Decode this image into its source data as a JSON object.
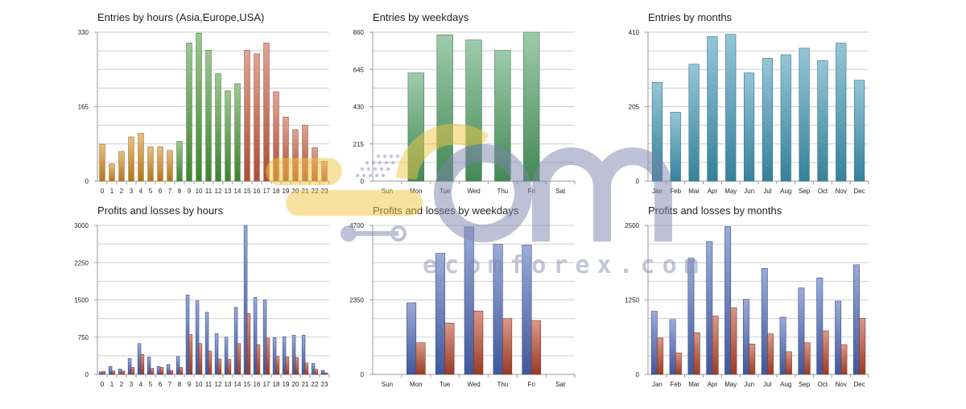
{
  "chart_data": [
    {
      "type": "bar",
      "title": "Entries by hours (Asia,Europe,USA)",
      "categories": [
        "0",
        "1",
        "2",
        "3",
        "4",
        "5",
        "6",
        "7",
        "8",
        "9",
        "10",
        "11",
        "12",
        "13",
        "14",
        "15",
        "16",
        "17",
        "18",
        "19",
        "20",
        "21",
        "22",
        "23"
      ],
      "series": [
        {
          "values": [
            82,
            38,
            66,
            98,
            106,
            76,
            76,
            68,
            88,
            306,
            328,
            290,
            238,
            200,
            216,
            290,
            282,
            306,
            198,
            142,
            114,
            124,
            74,
            44
          ]
        }
      ],
      "bar_colors": [
        "#d38a1e",
        "#d38a1e",
        "#d38a1e",
        "#d38a1e",
        "#d38a1e",
        "#d38a1e",
        "#d38a1e",
        "#d38a1e",
        "#4c9a3a",
        "#4c9a3a",
        "#4c9a3a",
        "#4c9a3a",
        "#4c9a3a",
        "#4c9a3a",
        "#4c9a3a",
        "#c95a3e",
        "#c95a3e",
        "#c95a3e",
        "#c95a3e",
        "#c95a3e",
        "#c95a3e",
        "#c95a3e",
        "#c95a3e",
        "#c95a3e"
      ],
      "ylim": [
        0,
        330
      ],
      "yticks": [
        "330",
        "165",
        "0"
      ],
      "grid": true
    },
    {
      "type": "bar",
      "title": "Entries by weekdays",
      "categories": [
        "Sun",
        "Mon",
        "Tue",
        "Wed",
        "Thu",
        "Fri",
        "Sat"
      ],
      "series": [
        {
          "values": [
            0,
            625,
            845,
            815,
            755,
            860,
            0
          ]
        }
      ],
      "bar_colors": [
        "#4fa165",
        "#4fa165",
        "#4fa165",
        "#4fa165",
        "#4fa165",
        "#4fa165",
        "#4fa165"
      ],
      "ylim": [
        0,
        860
      ],
      "yticks": [
        "860",
        "645",
        "430",
        "215",
        "0"
      ],
      "grid": true
    },
    {
      "type": "bar",
      "title": "Entries by months",
      "categories": [
        "Jan",
        "Feb",
        "Mar",
        "Apr",
        "May",
        "Jun",
        "Jul",
        "Aug",
        "Sep",
        "Oct",
        "Nov",
        "Dec"
      ],
      "series": [
        {
          "values": [
            272,
            190,
            322,
            398,
            404,
            298,
            338,
            348,
            366,
            332,
            380,
            278
          ]
        }
      ],
      "bar_colors": [
        "#3f98b6",
        "#3f98b6",
        "#3f98b6",
        "#3f98b6",
        "#3f98b6",
        "#3f98b6",
        "#3f98b6",
        "#3f98b6",
        "#3f98b6",
        "#3f98b6",
        "#3f98b6",
        "#3f98b6"
      ],
      "ylim": [
        0,
        410
      ],
      "yticks": [
        "410",
        "205",
        "0"
      ],
      "grid": true
    },
    {
      "type": "bar",
      "title": "Profits and losses by hours",
      "categories": [
        "0",
        "1",
        "2",
        "3",
        "4",
        "5",
        "6",
        "7",
        "8",
        "9",
        "10",
        "11",
        "12",
        "13",
        "14",
        "15",
        "16",
        "17",
        "18",
        "19",
        "20",
        "21",
        "22",
        "23"
      ],
      "series": [
        {
          "color": "#4a68b8",
          "values": [
            50,
            160,
            110,
            320,
            620,
            350,
            160,
            200,
            360,
            1600,
            1480,
            1250,
            820,
            750,
            1350,
            3000,
            1550,
            1500,
            740,
            760,
            790,
            790,
            220,
            80
          ]
        },
        {
          "color": "#b8452c",
          "values": [
            60,
            70,
            70,
            140,
            400,
            120,
            140,
            80,
            140,
            800,
            620,
            470,
            310,
            300,
            620,
            1230,
            600,
            730,
            360,
            350,
            340,
            230,
            100,
            30
          ]
        }
      ],
      "ylim": [
        0,
        3000
      ],
      "yticks": [
        "3000",
        "2250",
        "1500",
        "750",
        "0"
      ],
      "grid": true
    },
    {
      "type": "bar",
      "title": "Profits and losses by weekdays",
      "categories": [
        "Sun",
        "Mon",
        "Tue",
        "Wed",
        "Thu",
        "Fri",
        "Sat"
      ],
      "series": [
        {
          "color": "#4a68b8",
          "values": [
            0,
            2260,
            3820,
            4650,
            4100,
            4080,
            0
          ]
        },
        {
          "color": "#b8452c",
          "values": [
            0,
            1000,
            1620,
            2000,
            1760,
            1700,
            0
          ]
        }
      ],
      "ylim": [
        0,
        4700
      ],
      "yticks": [
        "4700",
        "2350",
        "0"
      ],
      "grid": true
    },
    {
      "type": "bar",
      "title": "Profits and losses by months",
      "categories": [
        "Jan",
        "Feb",
        "Mar",
        "Apr",
        "May",
        "Jun",
        "Jul",
        "Aug",
        "Sep",
        "Oct",
        "Nov",
        "Dec"
      ],
      "series": [
        {
          "color": "#4a68b8",
          "values": [
            1060,
            920,
            1950,
            2230,
            2480,
            1260,
            1780,
            960,
            1450,
            1620,
            1230,
            1840
          ]
        },
        {
          "color": "#b8452c",
          "values": [
            610,
            360,
            700,
            980,
            1120,
            510,
            680,
            380,
            530,
            730,
            500,
            940
          ]
        }
      ],
      "ylim": [
        0,
        2500
      ],
      "yticks": [
        "2500",
        "1250",
        "0"
      ],
      "grid": true
    }
  ],
  "watermark": {
    "site": "ecomforex.com",
    "colors": {
      "yellow": "#f2c646",
      "slate": "#7d85ad"
    }
  }
}
